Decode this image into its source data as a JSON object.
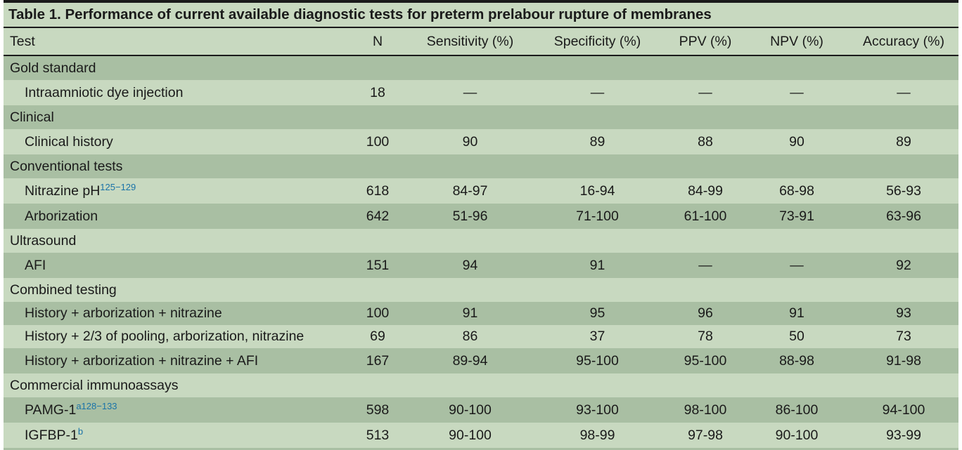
{
  "caption": "Table 1. Performance of current available diagnostic tests for preterm prelabour rupture of membranes",
  "columns": [
    "Test",
    "N",
    "Sensitivity (%)",
    "Specificity (%)",
    "PPV (%)",
    "NPV (%)",
    "Accuracy (%)"
  ],
  "sections": [
    {
      "title": "Gold standard",
      "rows": [
        {
          "test": "Intraamniotic dye injection",
          "sup": "",
          "values": [
            "18",
            "—",
            "—",
            "—",
            "—",
            "—"
          ]
        }
      ]
    },
    {
      "title": "Clinical",
      "rows": [
        {
          "test": "Clinical history",
          "sup": "",
          "values": [
            "100",
            "90",
            "89",
            "88",
            "90",
            "89"
          ]
        }
      ]
    },
    {
      "title": "Conventional tests",
      "rows": [
        {
          "test": "Nitrazine pH",
          "sup": "125−129",
          "values": [
            "618",
            "84-97",
            "16-94",
            "84-99",
            "68-98",
            "56-93"
          ]
        },
        {
          "test": "Arborization",
          "sup": "",
          "values": [
            "642",
            "51-96",
            "71-100",
            "61-100",
            "73-91",
            "63-96"
          ]
        }
      ]
    },
    {
      "title": "Ultrasound",
      "rows": [
        {
          "test": "AFI",
          "sup": "",
          "values": [
            "151",
            "94",
            "91",
            "—",
            "—",
            "92"
          ]
        }
      ]
    },
    {
      "title": "Combined testing",
      "rows": [
        {
          "test": "History + arborization + nitrazine",
          "sup": "",
          "values": [
            "100",
            "91",
            "95",
            "96",
            "91",
            "93"
          ]
        },
        {
          "test": "History + 2/3 of pooling, arborization, nitrazine",
          "sup": "",
          "values": [
            "69",
            "86",
            "37",
            "78",
            "50",
            "73"
          ]
        },
        {
          "test": "History + arborization + nitrazine + AFI",
          "sup": "",
          "values": [
            "167",
            "89-94",
            "95-100",
            "95-100",
            "88-98",
            "91-98"
          ]
        }
      ]
    },
    {
      "title": "Commercial immunoassays",
      "rows": [
        {
          "test": "PAMG-1",
          "sup": "a128−133",
          "values": [
            "598",
            "90-100",
            "93-100",
            "98-100",
            "86-100",
            "94-100"
          ]
        },
        {
          "test": "IGFBP-1",
          "sup": "b",
          "values": [
            "513",
            "90-100",
            "98-99",
            "97-98",
            "90-100",
            "93-99"
          ]
        }
      ]
    }
  ]
}
